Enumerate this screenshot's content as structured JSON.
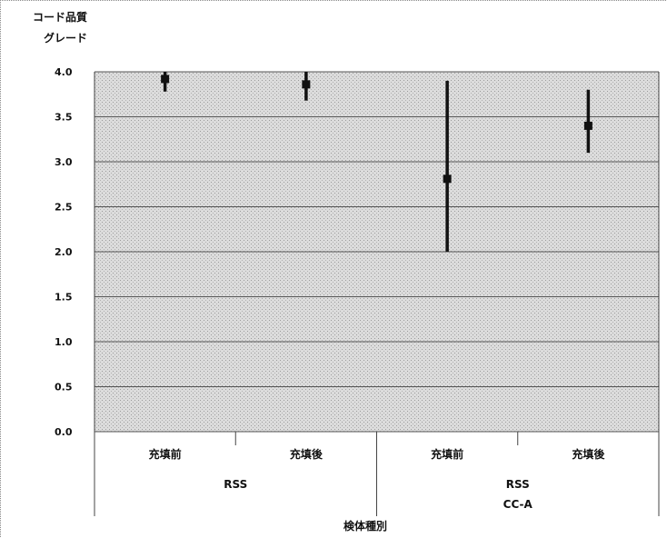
{
  "chart_data": {
    "type": "scatter",
    "title": "",
    "ylabel_lines": [
      "コード品質",
      "グレード"
    ],
    "xlabel": "検体種別",
    "ylim": [
      0,
      4
    ],
    "yticks": [
      "0.0",
      "0.5",
      "1.0",
      "1.5",
      "2.0",
      "2.5",
      "3.0",
      "3.5",
      "4.0"
    ],
    "grid": true,
    "legend": "none",
    "categories": [
      "充填前",
      "充填後",
      "充填前",
      "充填後"
    ],
    "groups": [
      {
        "lines": [
          "RSS"
        ],
        "categories": [
          0,
          1
        ]
      },
      {
        "lines": [
          "RSS",
          "CC-A"
        ],
        "categories": [
          2,
          3
        ]
      }
    ],
    "points": [
      {
        "category": 0,
        "value": 3.92,
        "low": 3.78,
        "high": 4.0
      },
      {
        "category": 1,
        "value": 3.86,
        "low": 3.68,
        "high": 4.0
      },
      {
        "category": 2,
        "value": 2.81,
        "low": 2.0,
        "high": 3.9
      },
      {
        "category": 3,
        "value": 3.4,
        "low": 3.1,
        "high": 3.8
      }
    ],
    "colors": {
      "marker": "#111111",
      "grid": "#555555",
      "plot_bg": "#d8d8d8"
    }
  }
}
